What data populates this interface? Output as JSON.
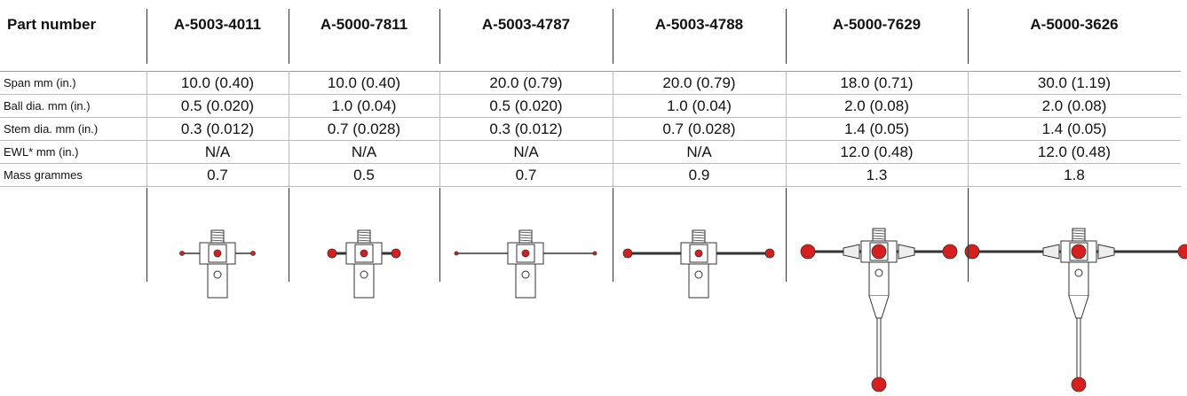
{
  "table": {
    "header": [
      "Part number",
      "A-5003-4011",
      "A-5000-7811",
      "A-5003-4787",
      "A-5003-4788",
      "A-5000-7629",
      "A-5000-3626"
    ],
    "rows": [
      [
        "Span mm (in.)",
        "10.0 (0.40)",
        "10.0 (0.40)",
        "20.0 (0.79)",
        "20.0 (0.79)",
        "18.0 (0.71)",
        "30.0 (1.19)"
      ],
      [
        "Ball dia. mm (in.)",
        "0.5 (0.020)",
        "1.0 (0.04)",
        "0.5 (0.020)",
        "1.0 (0.04)",
        "2.0 (0.08)",
        "2.0 (0.08)"
      ],
      [
        "Stem dia. mm (in.)",
        "0.3 (0.012)",
        "0.7 (0.028)",
        "0.3 (0.012)",
        "0.7 (0.028)",
        "1.4 (0.05)",
        "1.4 (0.05)"
      ],
      [
        "EWL* mm (in.)",
        "N/A",
        "N/A",
        "N/A",
        "N/A",
        "12.0 (0.48)",
        "12.0 (0.48)"
      ],
      [
        "Mass grammes",
        "0.7",
        "0.5",
        "0.7",
        "0.9",
        "1.3",
        "1.8"
      ]
    ]
  }
}
